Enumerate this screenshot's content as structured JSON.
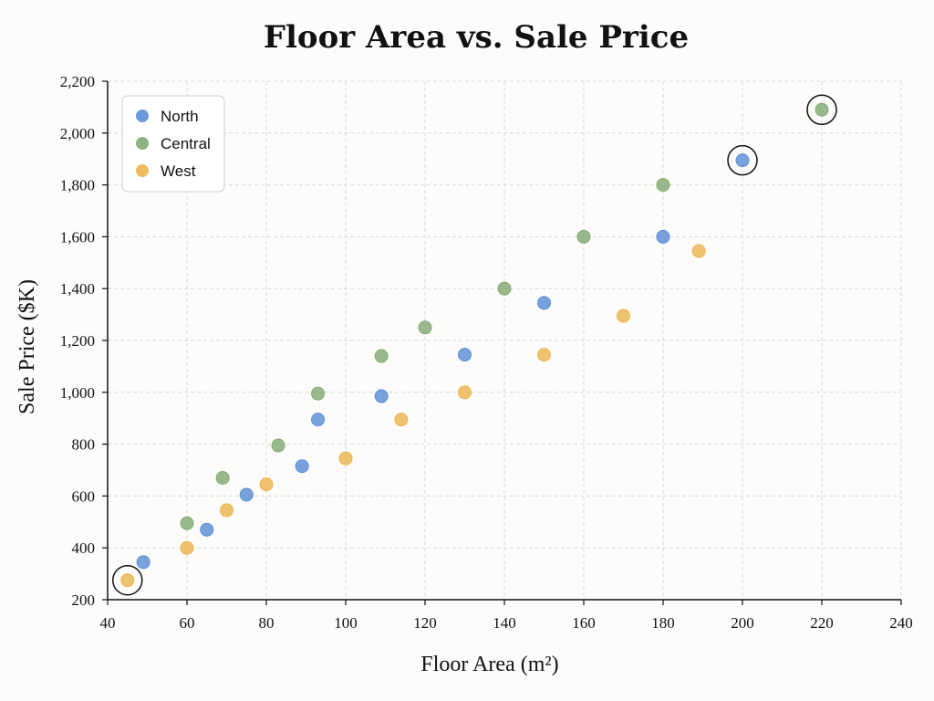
{
  "chart_data": {
    "type": "scatter",
    "title": "Floor Area vs. Sale Price",
    "xlabel": "Floor Area (m²)",
    "ylabel": "Sale Price ($K)",
    "xlim": [
      40,
      240
    ],
    "ylim": [
      200,
      2200
    ],
    "xticks": [
      40,
      60,
      80,
      100,
      120,
      140,
      160,
      180,
      200,
      220,
      240
    ],
    "yticks": [
      200,
      400,
      600,
      800,
      1000,
      1200,
      1400,
      1600,
      1800,
      2000,
      2200
    ],
    "xtick_labels": [
      "40",
      "60",
      "80",
      "100",
      "120",
      "140",
      "160",
      "180",
      "200",
      "220",
      "240"
    ],
    "ytick_labels": [
      "200",
      "400",
      "600",
      "800",
      "1,000",
      "1,200",
      "1,400",
      "1,600",
      "1,800",
      "2,000",
      "2,200"
    ],
    "grid": true,
    "legend_position": "top-left",
    "series": [
      {
        "name": "North",
        "color": "#5b8ed6",
        "points": [
          [
            49,
            345
          ],
          [
            65,
            470
          ],
          [
            75,
            605
          ],
          [
            89,
            715
          ],
          [
            93,
            895
          ],
          [
            109,
            985
          ],
          [
            130,
            1145
          ],
          [
            150,
            1345
          ],
          [
            180,
            1600
          ],
          [
            200,
            1895
          ]
        ]
      },
      {
        "name": "Central",
        "color": "#82aa74",
        "points": [
          [
            60,
            495
          ],
          [
            69,
            670
          ],
          [
            83,
            795
          ],
          [
            93,
            995
          ],
          [
            109,
            1140
          ],
          [
            120,
            1250
          ],
          [
            140,
            1400
          ],
          [
            160,
            1600
          ],
          [
            180,
            1800
          ],
          [
            220,
            2090
          ]
        ]
      },
      {
        "name": "West",
        "color": "#eab54f",
        "points": [
          [
            45,
            275
          ],
          [
            60,
            400
          ],
          [
            70,
            545
          ],
          [
            80,
            645
          ],
          [
            100,
            745
          ],
          [
            114,
            895
          ],
          [
            130,
            1000
          ],
          [
            150,
            1145
          ],
          [
            170,
            1295
          ],
          [
            189,
            1545
          ]
        ]
      }
    ],
    "highlighted_points": [
      {
        "series": "Central",
        "x": 220,
        "y": 2090
      },
      {
        "series": "North",
        "x": 200,
        "y": 1895
      },
      {
        "series": "West",
        "x": 45,
        "y": 275
      }
    ]
  }
}
